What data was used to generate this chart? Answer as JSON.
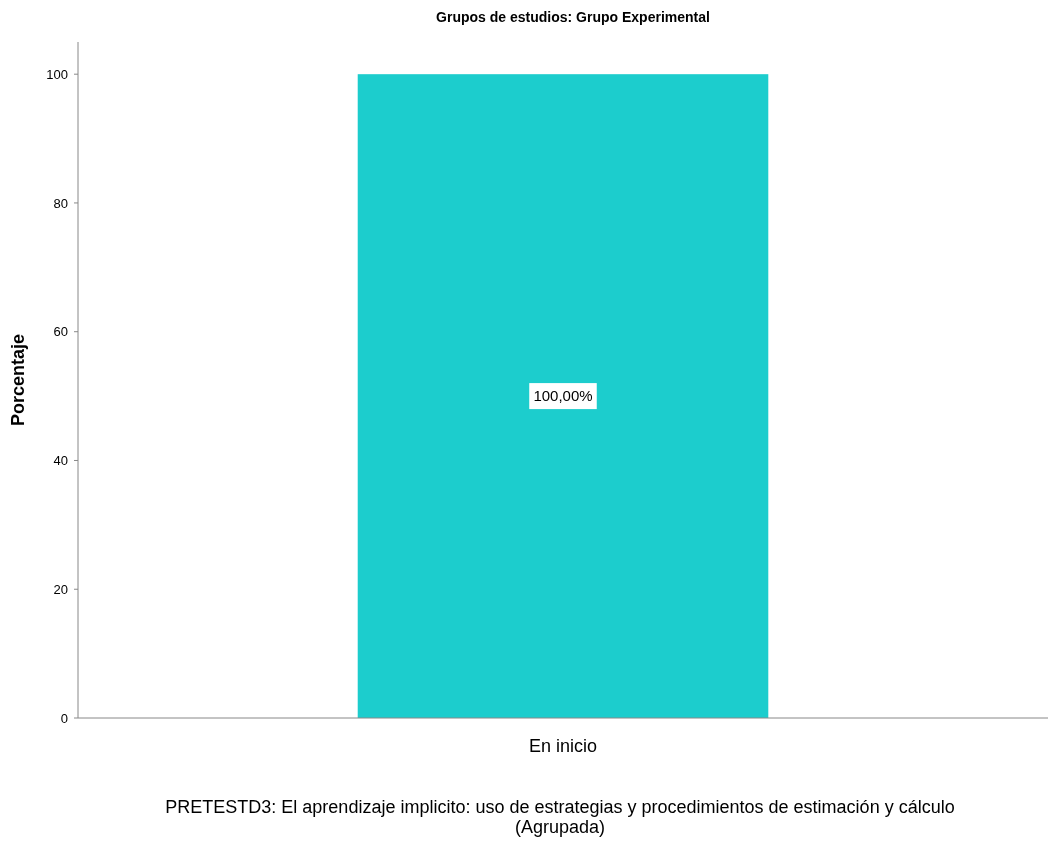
{
  "chart_data": {
    "type": "bar",
    "title": "Grupos de estudios: Grupo Experimental",
    "xlabel": "PRETESTD3: El aprendizaje implicito: uso de estrategias y procedimientos de estimación y cálculo\n(Agrupada)",
    "ylabel": "Porcentaje",
    "categories": [
      "En inicio"
    ],
    "values": [
      100
    ],
    "value_labels": [
      "100,00%"
    ],
    "color": "#1ccdcd",
    "ylim": [
      0,
      105
    ],
    "yticks": [
      0,
      20,
      40,
      60,
      80,
      100
    ],
    "grid": false
  }
}
